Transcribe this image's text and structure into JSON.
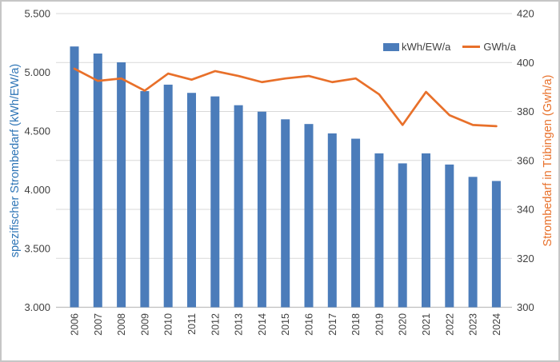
{
  "chart_data": {
    "type": "bar",
    "title": "",
    "categories": [
      "2006",
      "2007",
      "2008",
      "2009",
      "2010",
      "2011",
      "2012",
      "2013",
      "2014",
      "2015",
      "2016",
      "2017",
      "2018",
      "2019",
      "2020",
      "2021",
      "2022",
      "2023",
      "2024"
    ],
    "series": [
      {
        "name": "kWh/EW/a",
        "type": "bar",
        "axis": "left",
        "values": [
          5220,
          5160,
          5085,
          4840,
          4895,
          4825,
          4795,
          4720,
          4665,
          4600,
          4560,
          4480,
          4435,
          4310,
          4225,
          4310,
          4215,
          4110,
          4075
        ]
      },
      {
        "name": "GWh/a",
        "type": "line",
        "axis": "right",
        "values": [
          397.5,
          392.5,
          393.5,
          388.5,
          395.5,
          393,
          396.5,
          394.5,
          392,
          393.5,
          394.5,
          392,
          393.5,
          387,
          374.5,
          388,
          378.5,
          374.5,
          374
        ]
      }
    ],
    "left_axis": {
      "title": "spezifischer Strombedarf (kWh/EW/a)",
      "min": 3000,
      "max": 5500,
      "step": 500,
      "tick_labels": [
        "3.000",
        "3.500",
        "4.000",
        "4.500",
        "5.000",
        "5.500"
      ]
    },
    "right_axis": {
      "title": "Strombedarf in Tübingen (Gwh/a)",
      "min": 300,
      "max": 420,
      "step": 20,
      "tick_labels": [
        "300",
        "320",
        "340",
        "360",
        "380",
        "400",
        "420"
      ]
    },
    "legend": {
      "bar_label": "kWh/EW/a",
      "line_label": "GWh/a",
      "position": "top-right-inside"
    },
    "grid": "horizontal-on-right-axis-ticks",
    "colors": {
      "bar": "#4B7CBA",
      "line": "#E8702A",
      "left_title": "#2E75B6",
      "right_title": "#E8702A",
      "tick_text": "#404040",
      "grid": "#D9D9D9",
      "axis_line": "#BFBFBF"
    }
  }
}
